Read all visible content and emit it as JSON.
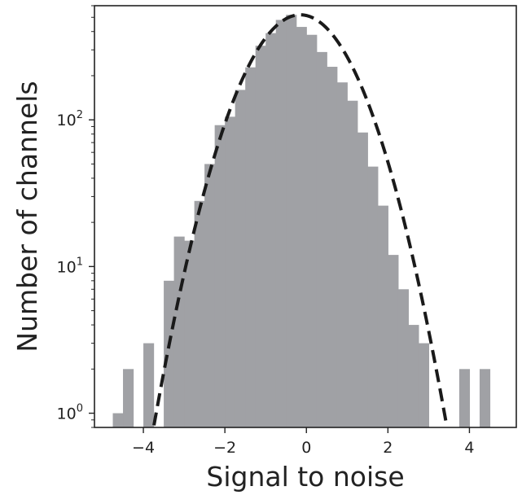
{
  "chart_data": {
    "type": "bar",
    "title": "",
    "xlabel": "Signal to noise",
    "ylabel": "Number of channels",
    "xscale": "linear",
    "yscale": "log",
    "xlim": [
      -5.2,
      5.15
    ],
    "ylim": [
      0.8,
      600
    ],
    "grid": false,
    "legend": "none",
    "xticks": [
      -4,
      -2,
      0,
      2,
      4
    ],
    "xtick_labels": [
      "−4",
      "−2",
      "0",
      "2",
      "4"
    ],
    "yticks": [
      {
        "value": 1,
        "base": "10",
        "exp": "0"
      },
      {
        "value": 10,
        "base": "10",
        "exp": "1"
      },
      {
        "value": 100,
        "base": "10",
        "exp": "2"
      }
    ],
    "bin_width": 0.25,
    "bins": [
      {
        "x0": -4.75,
        "count": 1
      },
      {
        "x0": -4.5,
        "count": 2
      },
      {
        "x0": -4.0,
        "count": 3
      },
      {
        "x0": -3.5,
        "count": 8
      },
      {
        "x0": -3.25,
        "count": 16
      },
      {
        "x0": -3.0,
        "count": 15
      },
      {
        "x0": -2.75,
        "count": 28
      },
      {
        "x0": -2.5,
        "count": 50
      },
      {
        "x0": -2.25,
        "count": 92
      },
      {
        "x0": -2.0,
        "count": 105
      },
      {
        "x0": -1.75,
        "count": 160
      },
      {
        "x0": -1.5,
        "count": 228
      },
      {
        "x0": -1.25,
        "count": 320
      },
      {
        "x0": -1.0,
        "count": 390
      },
      {
        "x0": -0.75,
        "count": 480
      },
      {
        "x0": -0.5,
        "count": 520
      },
      {
        "x0": -0.25,
        "count": 430
      },
      {
        "x0": 0.0,
        "count": 380
      },
      {
        "x0": 0.25,
        "count": 290
      },
      {
        "x0": 0.5,
        "count": 230
      },
      {
        "x0": 0.75,
        "count": 180
      },
      {
        "x0": 1.0,
        "count": 135
      },
      {
        "x0": 1.25,
        "count": 82
      },
      {
        "x0": 1.5,
        "count": 48
      },
      {
        "x0": 1.75,
        "count": 26
      },
      {
        "x0": 2.0,
        "count": 12
      },
      {
        "x0": 2.25,
        "count": 7
      },
      {
        "x0": 2.5,
        "count": 4
      },
      {
        "x0": 2.75,
        "count": 3
      },
      {
        "x0": 3.75,
        "count": 2
      },
      {
        "x0": 4.25,
        "count": 2
      }
    ],
    "fit_curve": {
      "style": "dashed",
      "peak": 520,
      "mean": -0.15,
      "sigma": 1.0
    },
    "colors": {
      "bars": "#a0a1a5",
      "curve": "#1a1a1a",
      "axes": "#222222"
    }
  }
}
